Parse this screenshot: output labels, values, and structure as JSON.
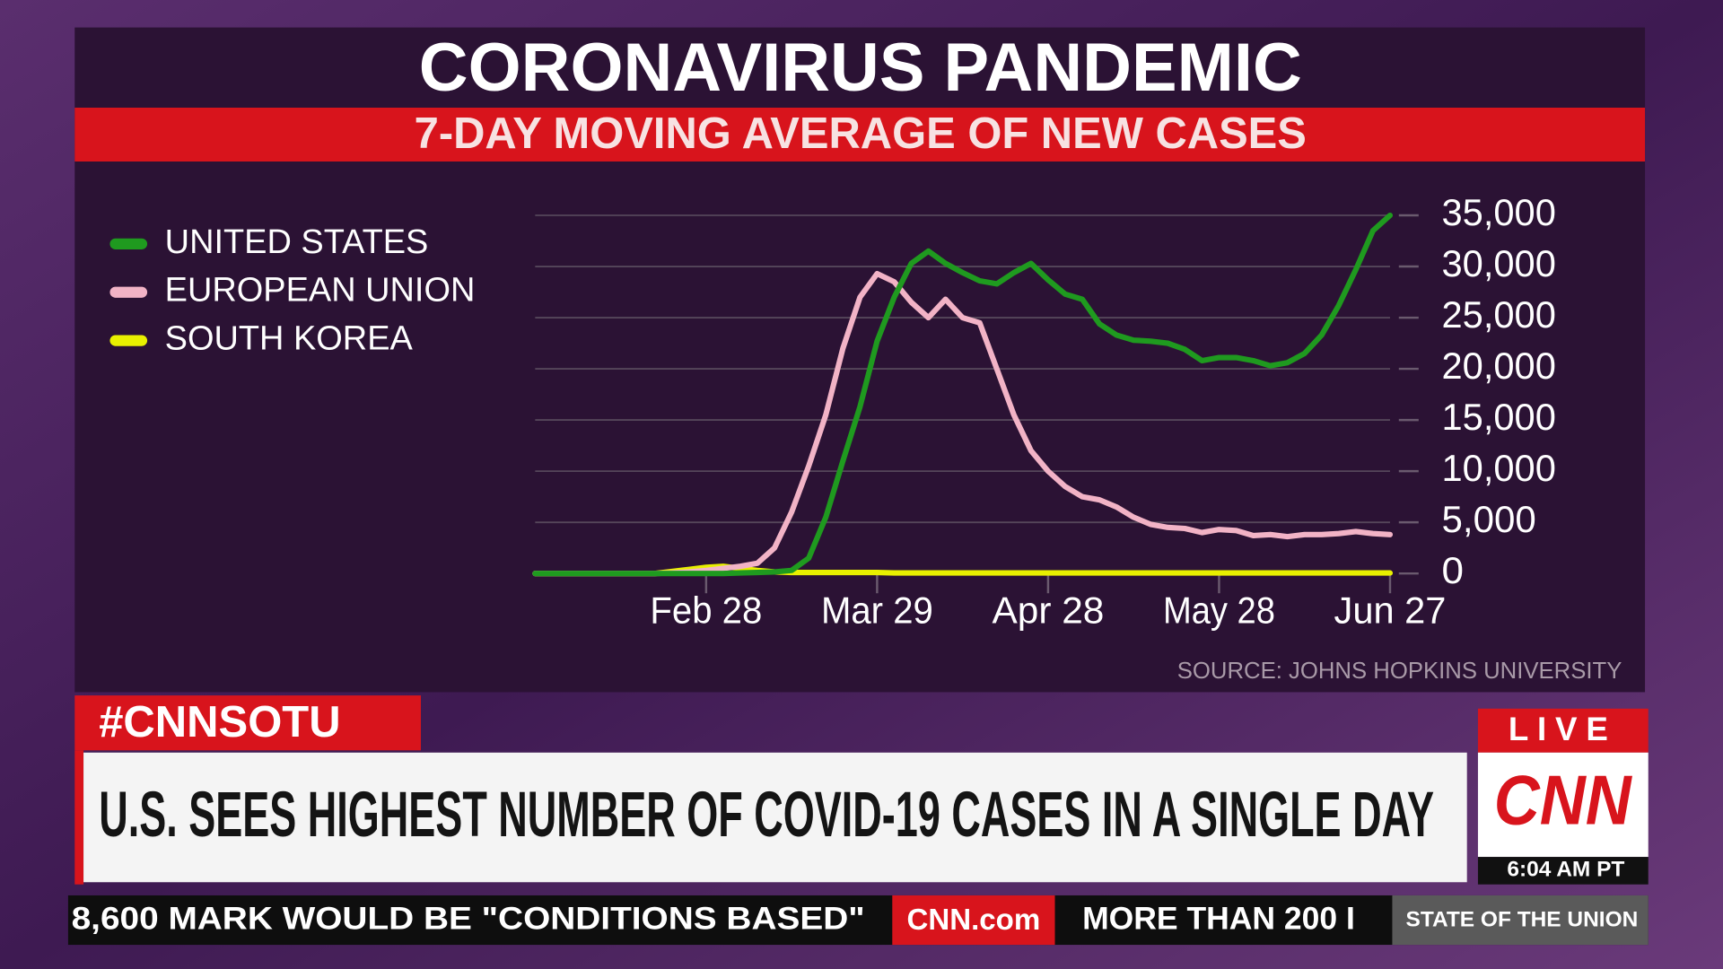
{
  "chart_data": {
    "type": "line",
    "title": "CORONAVIRUS PANDEMIC",
    "subtitle": "7-DAY MOVING AVERAGE OF NEW CASES",
    "source": "SOURCE: JOHNS HOPKINS UNIVERSITY",
    "x": [
      "Jan 29",
      "Feb 1",
      "Feb 4",
      "Feb 7",
      "Feb 10",
      "Feb 13",
      "Feb 16",
      "Feb 19",
      "Feb 22",
      "Feb 25",
      "Feb 28",
      "Mar 2",
      "Mar 5",
      "Mar 8",
      "Mar 11",
      "Mar 14",
      "Mar 17",
      "Mar 20",
      "Mar 23",
      "Mar 26",
      "Mar 29",
      "Apr 1",
      "Apr 4",
      "Apr 7",
      "Apr 10",
      "Apr 13",
      "Apr 16",
      "Apr 19",
      "Apr 22",
      "Apr 25",
      "Apr 28",
      "May 1",
      "May 4",
      "May 7",
      "May 10",
      "May 13",
      "May 16",
      "May 19",
      "May 22",
      "May 25",
      "May 28",
      "May 31",
      "Jun 3",
      "Jun 6",
      "Jun 9",
      "Jun 12",
      "Jun 15",
      "Jun 18",
      "Jun 21",
      "Jun 24",
      "Jun 27"
    ],
    "xticks": [
      "Feb 28",
      "Mar 29",
      "Apr 28",
      "May 28",
      "Jun 27"
    ],
    "ylim": [
      0,
      35000
    ],
    "yticks": [
      0,
      {
        "value": 5000,
        "label": "5,000"
      },
      {
        "value": 10000,
        "label": "10,000"
      },
      {
        "value": 15000,
        "label": "15,000"
      },
      {
        "value": 20000,
        "label": "20,000"
      },
      {
        "value": 25000,
        "label": "25,000"
      },
      {
        "value": 30000,
        "label": "30,000"
      },
      {
        "value": 35000,
        "label": "35,000"
      }
    ],
    "grid": true,
    "series": [
      {
        "name": "UNITED STATES",
        "color": "#1f9a1f",
        "values": [
          0,
          0,
          0,
          0,
          0,
          0,
          0,
          0,
          0,
          0,
          0,
          0,
          50,
          100,
          150,
          300,
          1500,
          5500,
          11000,
          16300,
          22700,
          27000,
          30300,
          31500,
          30300,
          29400,
          28600,
          28300,
          29400,
          30300,
          28700,
          27300,
          26800,
          24400,
          23300,
          22800,
          22700,
          22500,
          21900,
          20800,
          21100,
          21100,
          20800,
          20300,
          20600,
          21500,
          23300,
          26200,
          29700,
          33500,
          35000
        ]
      },
      {
        "name": "EUROPEAN UNION",
        "color": "#f2b3c6",
        "values": [
          0,
          0,
          0,
          0,
          0,
          0,
          0,
          0,
          50,
          150,
          300,
          500,
          700,
          1000,
          2500,
          6000,
          10500,
          15500,
          22000,
          27000,
          29300,
          28500,
          26500,
          25000,
          26800,
          25000,
          24500,
          20000,
          15500,
          12000,
          10000,
          8500,
          7500,
          7200,
          6500,
          5500,
          4800,
          4500,
          4400,
          4000,
          4300,
          4200,
          3700,
          3800,
          3600,
          3800,
          3800,
          3900,
          4100,
          3900,
          3800
        ]
      },
      {
        "name": "SOUTH KOREA",
        "color": "#e8f000",
        "values": [
          0,
          0,
          0,
          0,
          0,
          0,
          0,
          0,
          200,
          400,
          600,
          700,
          500,
          300,
          150,
          100,
          100,
          100,
          100,
          100,
          100,
          50,
          50,
          50,
          50,
          50,
          50,
          50,
          50,
          50,
          50,
          50,
          50,
          50,
          50,
          50,
          50,
          50,
          50,
          50,
          50,
          50,
          50,
          50,
          50,
          50,
          50,
          50,
          50,
          50,
          50
        ]
      }
    ]
  },
  "lower_third": {
    "hashtag": "#CNNSOTU",
    "headline": "U.S. SEES HIGHEST NUMBER OF COVID-19 CASES IN A SINGLE DAY",
    "live": "LIVE",
    "network": "CNN",
    "time": "6:04 AM PT"
  },
  "ticker": {
    "text": "8,600 MARK WOULD BE \"CONDITIONS BASED\"",
    "brand": "CNN.com",
    "next": "MORE THAN 200 I",
    "show": "STATE OF THE UNION"
  }
}
